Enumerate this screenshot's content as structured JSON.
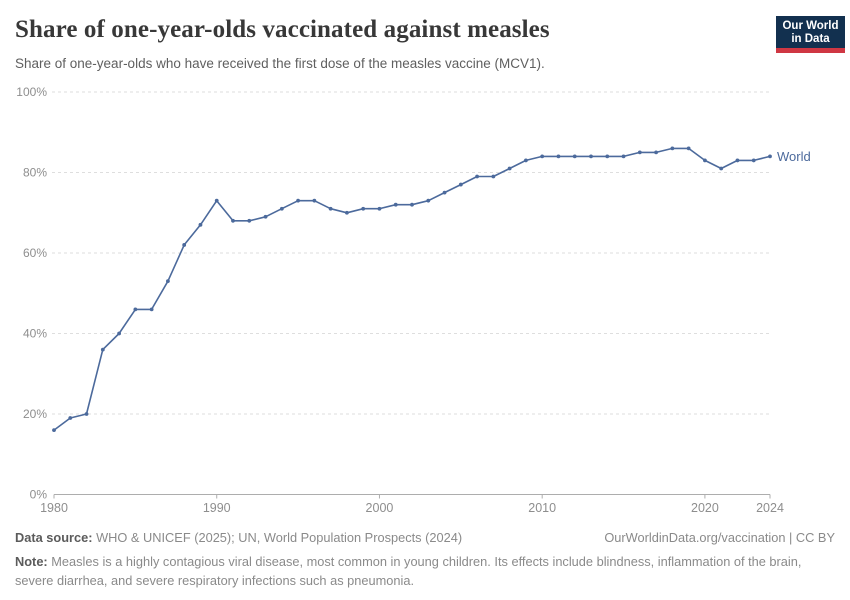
{
  "header": {
    "title": "Share of one-year-olds vaccinated against measles",
    "subtitle": "Share of one-year-olds who have received the first dose of the measles vaccine (MCV1).",
    "logo": {
      "line1": "Our World",
      "line2": "in Data"
    }
  },
  "chart_data": {
    "type": "line",
    "title": "Share of one-year-olds vaccinated against measles",
    "xlabel": "",
    "ylabel": "",
    "xlim": [
      1980,
      2024
    ],
    "ylim": [
      0,
      100
    ],
    "grid": "horizontal-dashed",
    "legend_position": "end-of-line",
    "x_ticks": [
      1980,
      1990,
      2000,
      2010,
      2020,
      2024
    ],
    "y_ticks": [
      0,
      20,
      40,
      60,
      80,
      100
    ],
    "y_tick_suffix": "%",
    "series": [
      {
        "name": "World",
        "color": "#4C6A9C",
        "x": [
          1980,
          1981,
          1982,
          1983,
          1984,
          1985,
          1986,
          1987,
          1988,
          1989,
          1990,
          1991,
          1992,
          1993,
          1994,
          1995,
          1996,
          1997,
          1998,
          1999,
          2000,
          2001,
          2002,
          2003,
          2004,
          2005,
          2006,
          2007,
          2008,
          2009,
          2010,
          2011,
          2012,
          2013,
          2014,
          2015,
          2016,
          2017,
          2018,
          2019,
          2020,
          2021,
          2022,
          2023,
          2024
        ],
        "values": [
          16,
          19,
          20,
          36,
          40,
          46,
          46,
          53,
          62,
          67,
          73,
          68,
          68,
          69,
          71,
          73,
          73,
          71,
          70,
          71,
          71,
          72,
          72,
          73,
          75,
          77,
          79,
          79,
          81,
          83,
          84,
          84,
          84,
          84,
          84,
          84,
          85,
          85,
          86,
          86,
          83,
          81,
          83,
          83,
          84
        ]
      }
    ]
  },
  "footer": {
    "datasource_label": "Data source:",
    "datasource_text": " WHO & UNICEF (2025); UN, World Population Prospects (2024)",
    "link": "OurWorldinData.org/vaccination | CC BY",
    "note_label": "Note:",
    "note_text": " Measles is a highly contagious viral disease, most common in young children. Its effects include blindness, inflammation of the brain, severe diarrhea, and severe respiratory infections such as pneumonia."
  },
  "colors": {
    "accent_line": "#4C6A9C",
    "grid": "#dedede",
    "axis": "#adadad",
    "logo_navy": "#12304f",
    "logo_red": "#cf3743"
  }
}
